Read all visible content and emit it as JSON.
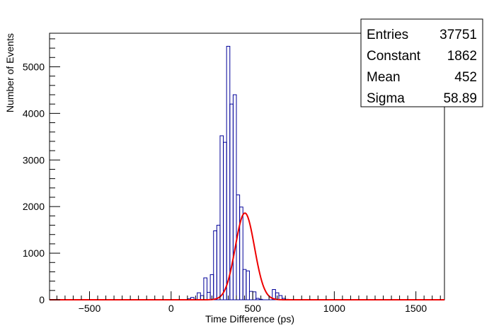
{
  "chart_data": {
    "type": "bar",
    "xlabel": "Time Difference (ps)",
    "ylabel": "Number of Events",
    "xlim": [
      -745,
      1675
    ],
    "ylim": [
      0,
      5720
    ],
    "x_ticks": [
      -500,
      0,
      500,
      1000,
      1500
    ],
    "y_ticks": [
      0,
      1000,
      2000,
      3000,
      4000,
      5000
    ],
    "x_tick_labels": [
      "−500",
      "0",
      "500",
      "1000",
      "1500"
    ],
    "y_tick_labels": [
      "0",
      "1000",
      "2000",
      "3000",
      "4000",
      "5000"
    ],
    "bin_width": 20,
    "bins": [
      {
        "x": 100,
        "count": 20
      },
      {
        "x": 120,
        "count": 50
      },
      {
        "x": 140,
        "count": 10
      },
      {
        "x": 160,
        "count": 150
      },
      {
        "x": 180,
        "count": 90
      },
      {
        "x": 200,
        "count": 470
      },
      {
        "x": 220,
        "count": 160
      },
      {
        "x": 240,
        "count": 540
      },
      {
        "x": 260,
        "count": 1480
      },
      {
        "x": 280,
        "count": 1600
      },
      {
        "x": 300,
        "count": 3520
      },
      {
        "x": 320,
        "count": 3380
      },
      {
        "x": 340,
        "count": 5440
      },
      {
        "x": 360,
        "count": 4200
      },
      {
        "x": 380,
        "count": 4400
      },
      {
        "x": 400,
        "count": 2250
      },
      {
        "x": 420,
        "count": 1990
      },
      {
        "x": 440,
        "count": 650
      },
      {
        "x": 460,
        "count": 620
      },
      {
        "x": 480,
        "count": 180
      },
      {
        "x": 500,
        "count": 170
      },
      {
        "x": 520,
        "count": 30
      },
      {
        "x": 540,
        "count": 10
      },
      {
        "x": 560,
        "count": 0
      },
      {
        "x": 580,
        "count": 0
      },
      {
        "x": 600,
        "count": 0
      },
      {
        "x": 620,
        "count": 220
      },
      {
        "x": 640,
        "count": 150
      },
      {
        "x": 660,
        "count": 90
      },
      {
        "x": 680,
        "count": 30
      },
      {
        "x": 700,
        "count": 10
      }
    ],
    "fit": {
      "function": "gaus",
      "constant": 1862,
      "mean": 452,
      "sigma": 58.89
    },
    "stats_box": {
      "placement": "top-right",
      "rows": [
        {
          "label": "Entries",
          "value": "37751"
        },
        {
          "label": "Constant",
          "value": "1862"
        },
        {
          "label": "Mean",
          "value": "452"
        },
        {
          "label": "Sigma",
          "value": "58.89"
        }
      ]
    },
    "colors": {
      "histogram": "#000099",
      "fit": "#ee0000",
      "axis": "#000000"
    }
  }
}
